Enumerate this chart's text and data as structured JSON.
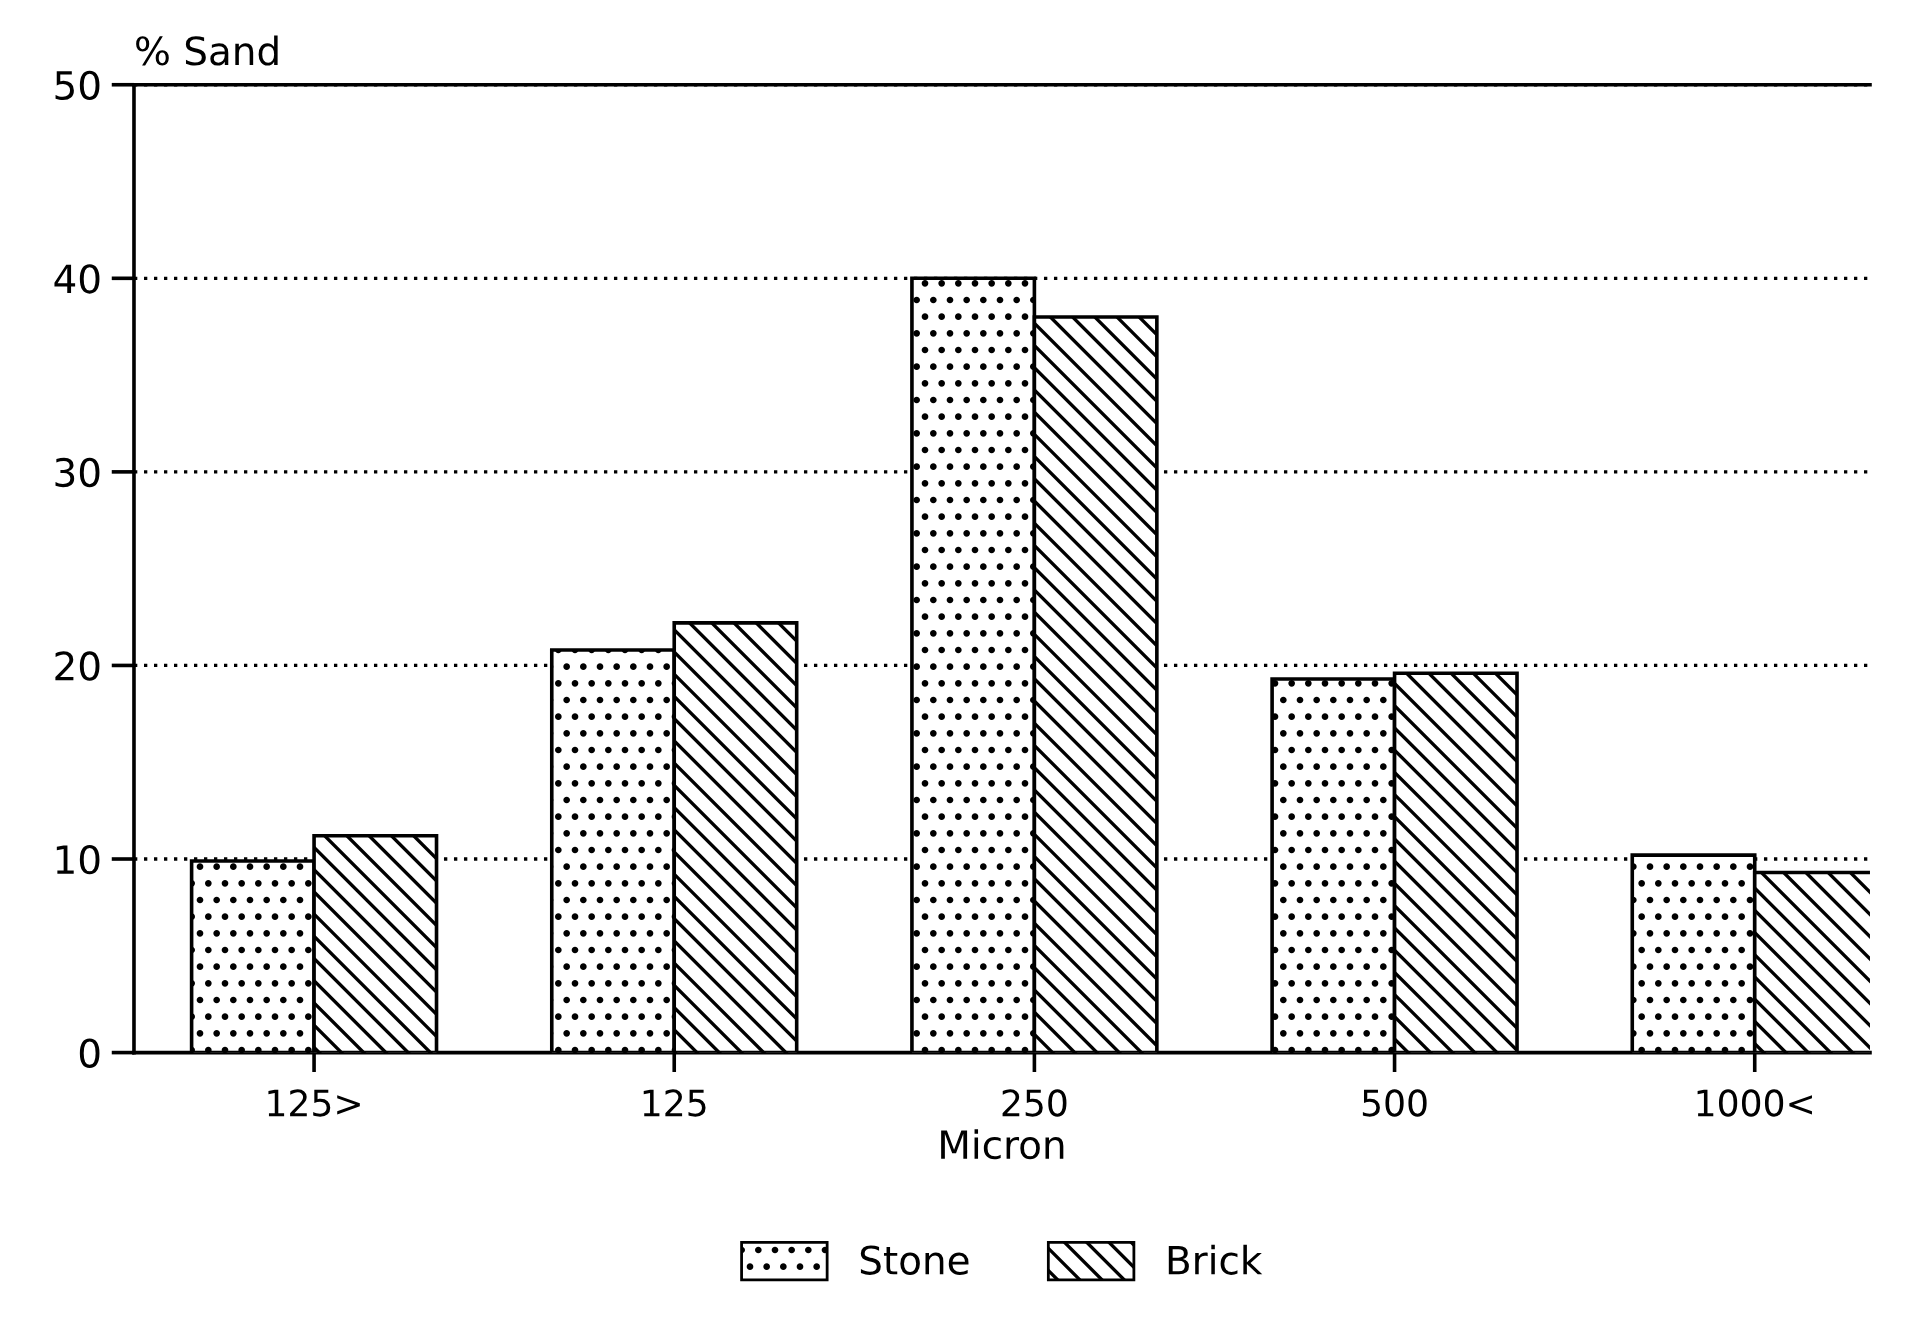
{
  "chart_data": {
    "type": "bar",
    "ylabel": "% Sand",
    "xlabel": "Micron",
    "categories": [
      "125>",
      "125",
      "250",
      "500",
      "1000<"
    ],
    "series": [
      {
        "name": "Stone",
        "color": "#000000",
        "values": [
          9.9,
          20.8,
          40.0,
          19.3,
          10.2
        ]
      },
      {
        "name": "Brick",
        "color": "#000000",
        "values": [
          11.2,
          22.2,
          38.0,
          19.6,
          9.3
        ]
      }
    ],
    "ylim": [
      0,
      50
    ],
    "yticks": [
      0,
      10,
      20,
      30,
      40,
      50
    ],
    "grid": "y",
    "legend": "bottom"
  }
}
